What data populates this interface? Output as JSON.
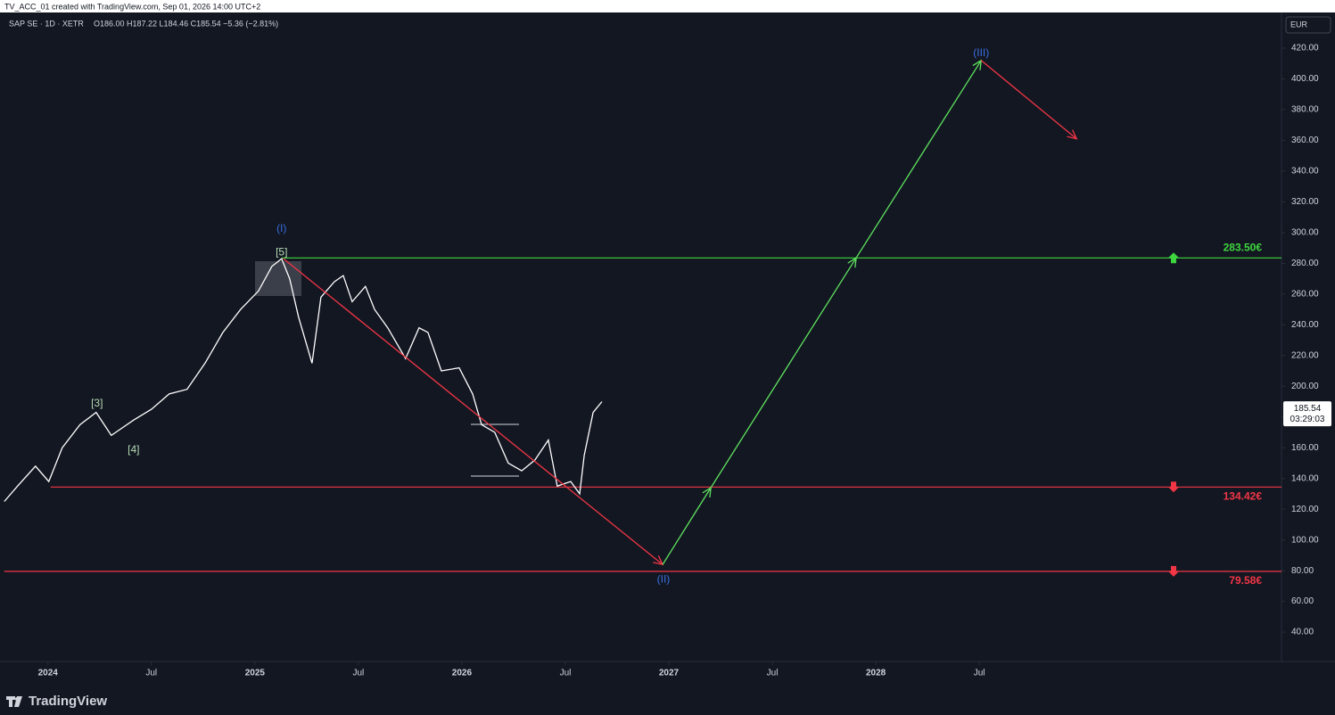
{
  "header": {
    "caption": "TV_ACC_01 created with TradingView.com, Sep 01, 2026 14:00 UTC+2",
    "currency": "EUR",
    "brand": "TradingView"
  },
  "chart_data": {
    "type": "line",
    "symbol": "SAP SE · 1D · XETR",
    "ohlc": "O186.00 H187.22 L184.46 C185.54 −5.36 (−2.81%)",
    "last_price": 185.54,
    "countdown": "03:29:03",
    "color": "#ffffff",
    "x": [
      2023.789,
      2023.853,
      2023.94,
      2024.004,
      2024.069,
      2024.155,
      2024.233,
      2024.306,
      2024.414,
      2024.5,
      2024.586,
      2024.672,
      2024.759,
      2024.845,
      2024.931,
      2025.017,
      2025.082,
      2025.129,
      2025.168,
      2025.211,
      2025.276,
      2025.319,
      2025.384,
      2025.427,
      2025.47,
      2025.534,
      2025.578,
      2025.642,
      2025.728,
      2025.793,
      2025.836,
      2025.901,
      2025.987,
      2026.052,
      2026.095,
      2026.159,
      2026.224,
      2026.289,
      2026.353,
      2026.418,
      2026.461,
      2026.526,
      2026.569,
      2026.591,
      2026.634,
      2026.677
    ],
    "values": [
      125,
      135,
      148,
      138,
      160,
      175,
      183,
      168,
      178,
      185,
      195,
      198,
      215,
      235,
      250,
      262,
      278,
      283,
      270,
      245,
      215,
      258,
      268,
      272,
      255,
      265,
      250,
      238,
      218,
      238,
      235,
      210,
      212,
      195,
      175,
      170,
      150,
      145,
      152,
      165,
      135,
      138,
      130,
      155,
      183,
      190
    ],
    "projection": {
      "x": [
        2025.138,
        2026.97,
        2027.203,
        2027.905,
        2028.509,
        2028.97
      ],
      "values": [
        283,
        84,
        134,
        283.5,
        412,
        361
      ],
      "colors": [
        "#f23645",
        "#5ee35e",
        "#5ee35e",
        "#5ee35e",
        "#f23645"
      ]
    },
    "levels": [
      {
        "value": 283.5,
        "label": "283.50€",
        "x_start": 2025.129,
        "color": "#3ed63e",
        "arrow": "up"
      },
      {
        "value": 134.42,
        "label": "134.42€",
        "x_start": 2024.013,
        "color": "#f23645",
        "arrow": "down"
      },
      {
        "value": 79.58,
        "label": "79.58€",
        "x_start": 2023.789,
        "color": "#f23645",
        "arrow": "down"
      }
    ],
    "annotations": [
      {
        "text": "(I)",
        "x": 2025.129,
        "y": 302.2,
        "color": "#3a6fe0"
      },
      {
        "text": "[5]",
        "x": 2025.129,
        "y": 287.1,
        "color": "#b5dcb5"
      },
      {
        "text": "[3]",
        "x": 2024.237,
        "y": 188.5,
        "color": "#b5dcb5"
      },
      {
        "text": "[4]",
        "x": 2024.414,
        "y": 158.4,
        "color": "#b5dcb5"
      },
      {
        "text": "(II)",
        "x": 2026.974,
        "y": 74.2,
        "color": "#3a6fe0"
      },
      {
        "text": "(III)",
        "x": 2028.509,
        "y": 416.5,
        "color": "#3a6fe0"
      }
    ],
    "xlim": [
      2023.79,
      2029.96
    ],
    "ylim": [
      20.9,
      443.2
    ],
    "xticks": [
      2024,
      {
        "value": 2024.5,
        "label": "Jul"
      },
      2025,
      {
        "value": 2025.5,
        "label": "Jul"
      },
      2026,
      {
        "value": 2026.5,
        "label": "Jul"
      },
      2027,
      {
        "value": 2027.5,
        "label": "Jul"
      },
      2028,
      {
        "value": 2028.5,
        "label": "Jul"
      }
    ],
    "yticks": [
      {
        "value": 40,
        "label": "40.00"
      },
      {
        "value": 60,
        "label": "60.00"
      },
      {
        "value": 80,
        "label": "80.00"
      },
      {
        "value": 100,
        "label": "100.00"
      },
      {
        "value": 120,
        "label": "120.00"
      },
      {
        "value": 140,
        "label": "140.00"
      },
      {
        "value": 160,
        "label": "160.00"
      },
      {
        "value": 180,
        "label": "180.00"
      },
      {
        "value": 200,
        "label": "200.00"
      },
      {
        "value": 220,
        "label": "220.00"
      },
      {
        "value": 240,
        "label": "240.00"
      },
      {
        "value": 260,
        "label": "260.00"
      },
      {
        "value": 280,
        "label": "280.00"
      },
      {
        "value": 300,
        "label": "300.00"
      },
      {
        "value": 320,
        "label": "320.00"
      },
      {
        "value": 340,
        "label": "340.00"
      },
      {
        "value": 360,
        "label": "360.00"
      },
      {
        "value": 380,
        "label": "380.00"
      },
      {
        "value": 400,
        "label": "400.00"
      },
      {
        "value": 420,
        "label": "420.00"
      }
    ],
    "grid": false
  }
}
